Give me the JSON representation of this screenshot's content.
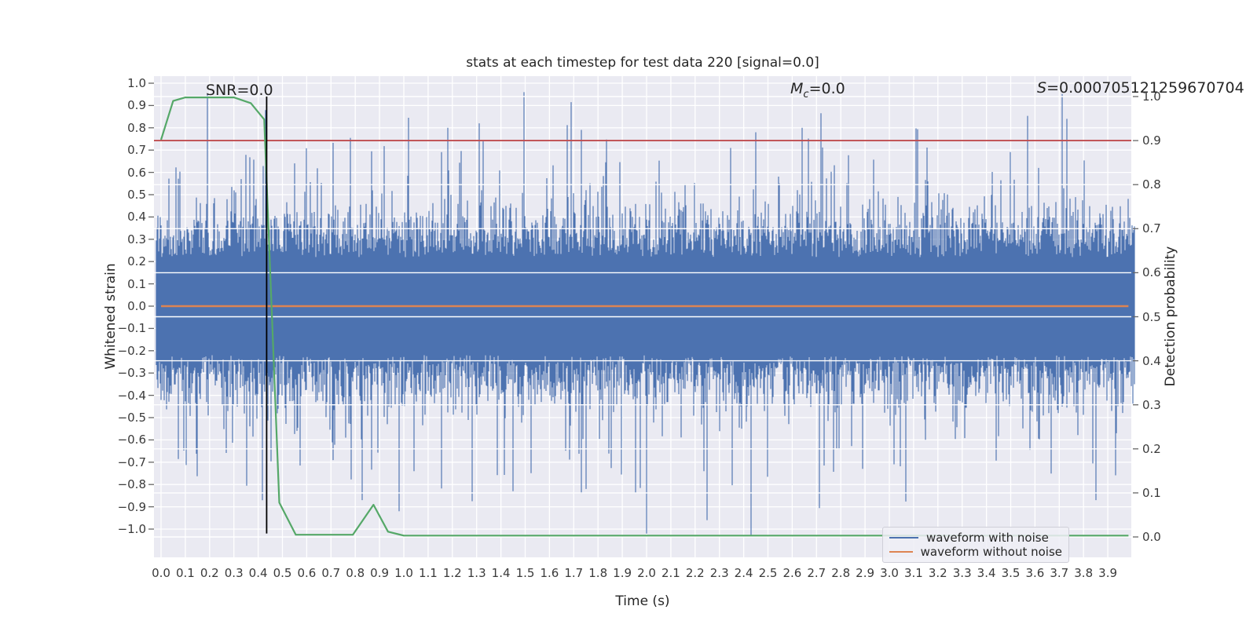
{
  "chart_data": {
    "type": "line",
    "title": "stats at each timestep for test data 220 [signal=0.0]",
    "xlabel": "Time (s)",
    "ylabel_left": "Whitened strain",
    "ylabel_right": "Detection probability",
    "xlim": [
      -0.03,
      4.0
    ],
    "ylim_left": [
      -1.12,
      1.03
    ],
    "ylim_right": [
      -0.05,
      1.05
    ],
    "grid": true,
    "x_ticks": [
      "0.0",
      "0.1",
      "0.2",
      "0.3",
      "0.4",
      "0.5",
      "0.6",
      "0.7",
      "0.8",
      "0.9",
      "1.0",
      "1.1",
      "1.2",
      "1.3",
      "1.4",
      "1.5",
      "1.6",
      "1.7",
      "1.8",
      "1.9",
      "2.0",
      "2.1",
      "2.2",
      "2.3",
      "2.4",
      "2.5",
      "2.6",
      "2.7",
      "2.8",
      "2.9",
      "3.0",
      "3.1",
      "3.2",
      "3.3",
      "3.4",
      "3.5",
      "3.6",
      "3.7",
      "3.8",
      "3.9"
    ],
    "y_ticks_left": [
      "1.0",
      "0.9",
      "0.8",
      "0.7",
      "0.6",
      "0.5",
      "0.4",
      "0.3",
      "0.2",
      "0.1",
      "0.0",
      "−0.1",
      "−0.2",
      "−0.3",
      "−0.4",
      "−0.5",
      "−0.6",
      "−0.7",
      "−0.8",
      "−0.9",
      "−1.0"
    ],
    "y_ticks_right": [
      "1.0",
      "0.9",
      "0.8",
      "0.7",
      "0.6",
      "0.5",
      "0.4",
      "0.3",
      "0.2",
      "0.1",
      "0.0"
    ],
    "annotations": {
      "snr": "SNR=0.0",
      "mc": {
        "symbol": "M",
        "sub": "c",
        "rest": "=0.0"
      },
      "s": {
        "symbol": "S",
        "rest": "=0.000705121259670704"
      }
    },
    "style": {
      "figure_bg": "#ffffff",
      "axes_bg": "#eaeaf2",
      "grid_color": "#ffffff",
      "text_color": "#262626",
      "tick_mark_color": "#666666"
    },
    "series": [
      {
        "name": "waveform with noise",
        "axis": "left",
        "color": "#4c72b0",
        "kind": "dense-gaussian-noise",
        "description": "stationary whitened noise spanning 0-4 s; solid core about ±0.35 with frequent excursions to ±0.6 and rare spikes toward ±0.95",
        "generator": {
          "seed": 1337,
          "t_start": 0.0,
          "t_end": 4.0,
          "columns": 1238,
          "core_base": 0.22,
          "core_jitter": 0.11,
          "wobble_prob": 0.3,
          "wobble_max": 0.12,
          "mid_spike_prob": 0.055,
          "mid_spike_range": [
            0.15,
            0.43
          ],
          "big_spike_prob": 0.009,
          "big_spike_range": [
            0.38,
            0.6
          ],
          "max_amplitude": 0.96
        },
        "feature_spikes": [
          {
            "t": 0.19,
            "y": 0.95
          },
          {
            "t": 0.78,
            "y": 0.755
          },
          {
            "t": 1.02,
            "y": 0.845
          },
          {
            "t": 1.18,
            "y": 0.8
          },
          {
            "t": 1.31,
            "y": 0.82
          },
          {
            "t": 1.69,
            "y": 0.915
          },
          {
            "t": 2.45,
            "y": 0.78
          },
          {
            "t": 2.64,
            "y": 0.8
          },
          {
            "t": 2.72,
            "y": 0.865
          },
          {
            "t": 3.73,
            "y": 0.84
          },
          {
            "t": 0.83,
            "y": -0.87
          },
          {
            "t": 0.98,
            "y": -0.92
          },
          {
            "t": 1.45,
            "y": -0.83
          },
          {
            "t": 1.75,
            "y": -0.82
          },
          {
            "t": 2.0,
            "y": -1.02
          },
          {
            "t": 2.43,
            "y": -1.03
          },
          {
            "t": 3.85,
            "y": -0.87
          }
        ]
      },
      {
        "name": "waveform without noise",
        "axis": "left",
        "color": "#dd8452",
        "kind": "line",
        "points": [
          [
            0.0,
            0.0
          ],
          [
            3.985,
            0.0
          ]
        ]
      },
      {
        "name": "detection probability",
        "axis": "right",
        "color": "#55a868",
        "kind": "line",
        "points": [
          [
            0.0,
            0.902
          ],
          [
            0.05,
            0.99
          ],
          [
            0.1,
            0.998
          ],
          [
            0.3,
            0.998
          ],
          [
            0.37,
            0.985
          ],
          [
            0.425,
            0.948
          ],
          [
            0.487,
            0.078
          ],
          [
            0.555,
            0.005
          ],
          [
            0.79,
            0.005
          ],
          [
            0.875,
            0.073
          ],
          [
            0.935,
            0.012
          ],
          [
            1.0,
            0.003
          ],
          [
            3.985,
            0.003
          ]
        ]
      },
      {
        "name": "detection threshold",
        "axis": "right",
        "color": "#bf4b4e",
        "kind": "hline",
        "y": 0.9
      },
      {
        "name": "event time marker",
        "axis": "left",
        "color": "#000000",
        "kind": "vline",
        "x": 0.435,
        "y_span_left": [
          -1.02,
          0.94
        ]
      }
    ],
    "legend": {
      "position": "lower right",
      "entries": [
        {
          "label": "waveform with noise",
          "color": "#4c72b0"
        },
        {
          "label": "waveform without noise",
          "color": "#dd8452"
        }
      ]
    }
  }
}
